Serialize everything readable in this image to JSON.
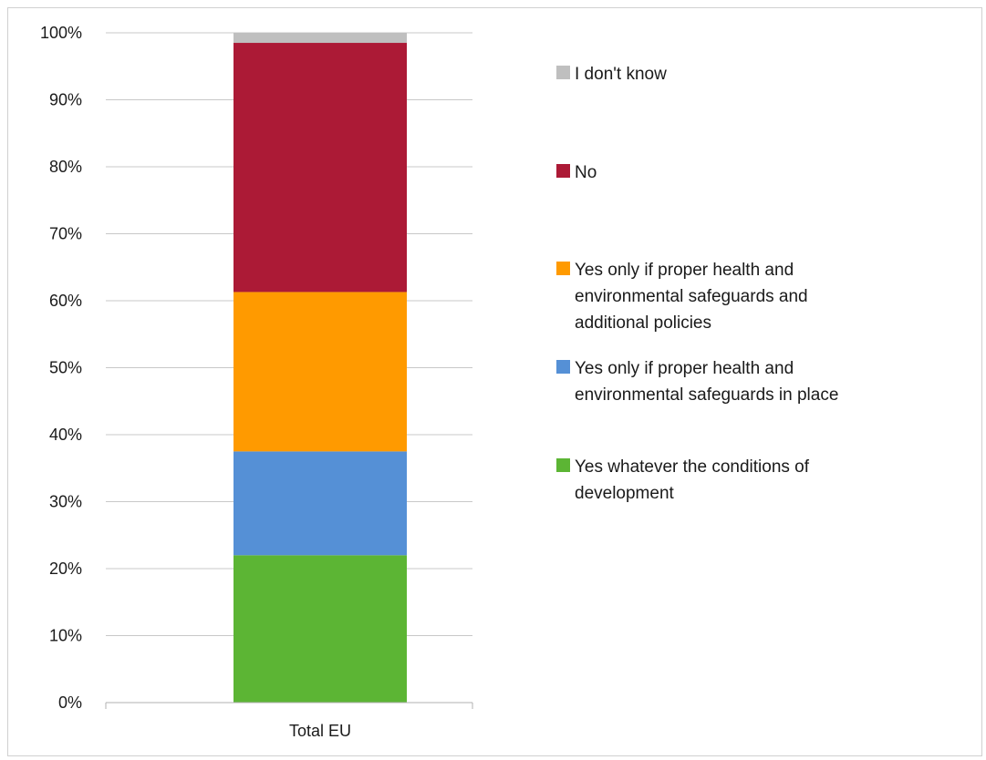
{
  "chart_data": {
    "type": "bar",
    "stacked": true,
    "percent_stacked": true,
    "categories": [
      "Total EU"
    ],
    "ylim": [
      0,
      100
    ],
    "y_ticks": [
      "0%",
      "10%",
      "20%",
      "30%",
      "40%",
      "50%",
      "60%",
      "70%",
      "80%",
      "90%",
      "100%"
    ],
    "grid": true,
    "legend_position": "right",
    "series": [
      {
        "name": "Yes whatever the conditions of development",
        "values": [
          22.0
        ],
        "color": "#5cb534"
      },
      {
        "name": "Yes only if proper health and environmental safeguards in place",
        "values": [
          15.5
        ],
        "color": "#5590d6"
      },
      {
        "name": "Yes only if proper health and environmental safeguards and additional policies",
        "values": [
          23.8
        ],
        "color": "#ff9a00"
      },
      {
        "name": "No",
        "values": [
          37.2
        ],
        "color": "#ac1a36"
      },
      {
        "name": "I don't know",
        "values": [
          1.5
        ],
        "color": "#bfbfbf"
      }
    ],
    "legend_entries": [
      {
        "lines": [
          "I don't know"
        ],
        "color": "#bfbfbf"
      },
      {
        "lines": [
          "No"
        ],
        "color": "#ac1a36"
      },
      {
        "lines": [
          "Yes only if proper health and",
          "environmental safeguards and",
          "additional policies"
        ],
        "color": "#ff9a00"
      },
      {
        "lines": [
          "Yes only if proper health and",
          "environmental safeguards in place"
        ],
        "color": "#5590d6"
      },
      {
        "lines": [
          "Yes whatever the conditions of",
          "development"
        ],
        "color": "#5cb534"
      }
    ]
  }
}
